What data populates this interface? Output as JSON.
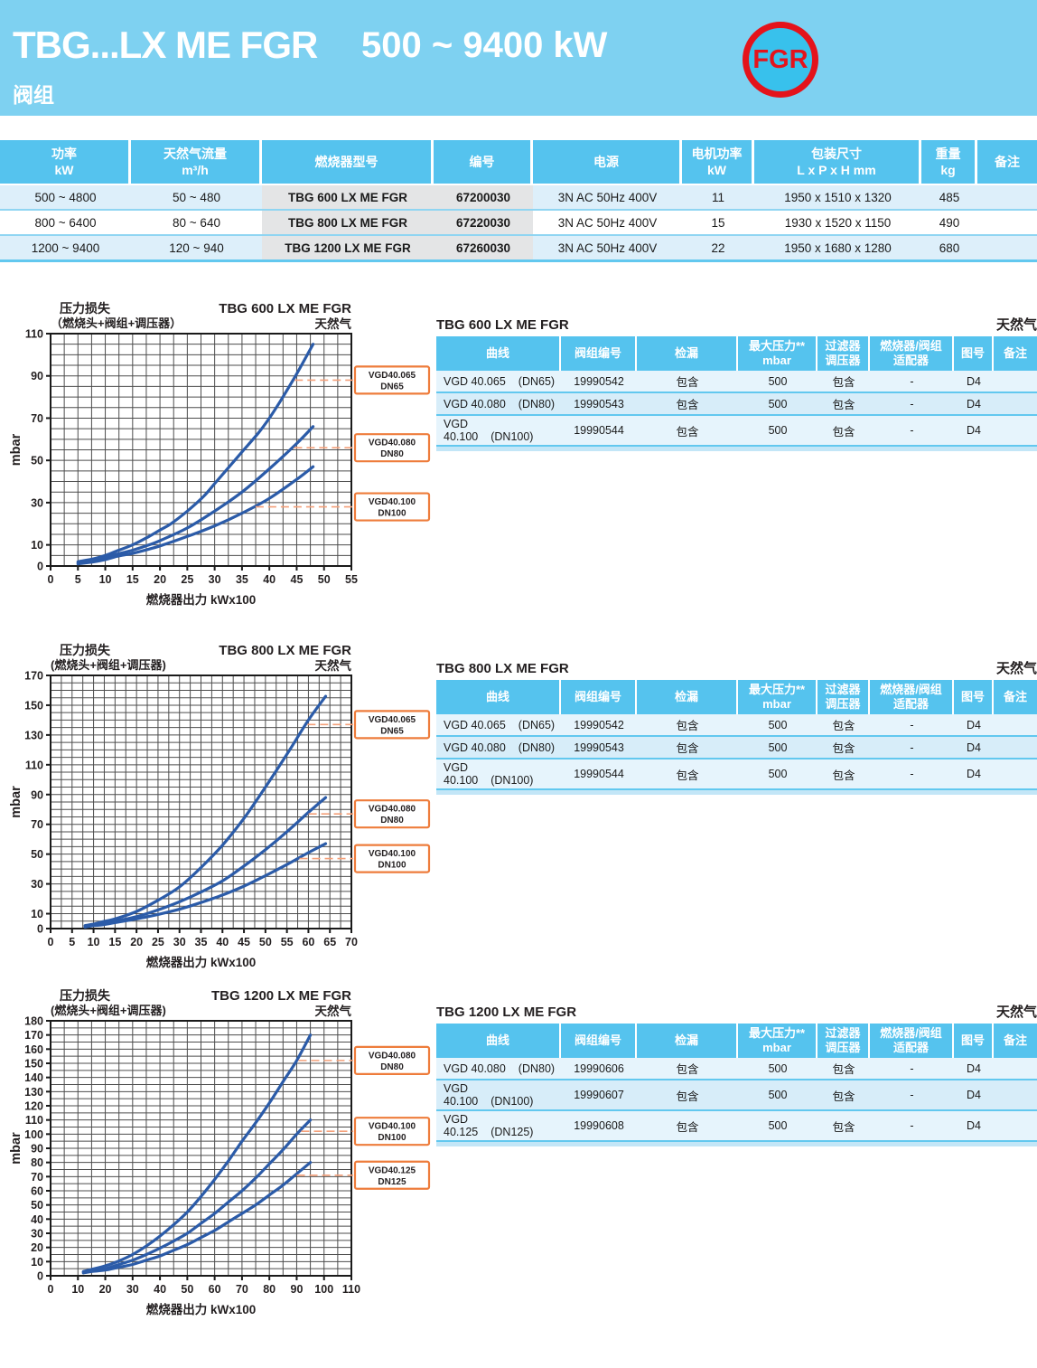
{
  "header": {
    "title": "TBG...LX ME FGR",
    "power_range": "500 ~ 9400 kW",
    "subtitle": "阀组",
    "badge": "FGR"
  },
  "colors": {
    "band_blue": "#7ed1f1",
    "table_header_blue": "#55c3ee",
    "row_light_blue": "#ddeffa",
    "gray_column": "#e4e5e6",
    "curve_blue": "#2b5ba8",
    "grid_gray": "#4d4d4d",
    "orange": "#ee7c3b",
    "dash_orange": "#f4a07a",
    "badge_red": "#e4131b"
  },
  "main_table": {
    "headers": [
      [
        "功率",
        "kW"
      ],
      [
        "天然气流量",
        "m³/h"
      ],
      [
        "燃烧器型号"
      ],
      [
        "编号"
      ],
      [
        "电源"
      ],
      [
        "电机功率",
        "kW"
      ],
      [
        "包装尺寸",
        "L x P x H  mm"
      ],
      [
        "重量",
        "kg"
      ],
      [
        "备注"
      ]
    ],
    "rows": [
      [
        "500 ~ 4800",
        "50 ~ 480",
        "TBG 600 LX ME FGR",
        "67200030",
        "3N AC 50Hz 400V",
        "11",
        "1950 x 1510 x 1320",
        "485",
        ""
      ],
      [
        "800 ~ 6400",
        "80 ~ 640",
        "TBG 800 LX ME FGR",
        "67220030",
        "3N AC 50Hz 400V",
        "15",
        "1930 x 1520 x 1150",
        "490",
        ""
      ],
      [
        "1200 ~ 9400",
        "120 ~ 940",
        "TBG 1200 LX ME FGR",
        "67260030",
        "3N AC 50Hz 400V",
        "22",
        "1950 x 1680 x 1280",
        "680",
        ""
      ]
    ]
  },
  "side_table_headers": [
    [
      "曲线"
    ],
    [
      "阀组编号"
    ],
    [
      "检漏"
    ],
    [
      "最大压力**",
      "mbar"
    ],
    [
      "过滤器",
      "调压器"
    ],
    [
      "燃烧器/阀组",
      "适配器"
    ],
    [
      "图号"
    ],
    [
      "备注"
    ]
  ],
  "sections": [
    {
      "id": "tbg600",
      "title": "TBG 600 LX ME FGR",
      "gas": "天然气",
      "table_rows": [
        {
          "curve": "VGD 40.065",
          "dn": "(DN65)",
          "code": "19990542",
          "leak": "包含",
          "max_pressure": "500",
          "filter": "包含",
          "adapter": "-",
          "diagram": "D4",
          "notes": ""
        },
        {
          "curve": "VGD 40.080",
          "dn": "(DN80)",
          "code": "19990543",
          "leak": "包含",
          "max_pressure": "500",
          "filter": "包含",
          "adapter": "-",
          "diagram": "D4",
          "notes": ""
        },
        {
          "curve": "VGD 40.100",
          "dn": "(DN100)",
          "code": "19990544",
          "leak": "包含",
          "max_pressure": "500",
          "filter": "包含",
          "adapter": "-",
          "diagram": "D4",
          "notes": ""
        }
      ]
    },
    {
      "id": "tbg800",
      "title": "TBG 800 LX ME FGR",
      "gas": "天然气",
      "table_rows": [
        {
          "curve": "VGD 40.065",
          "dn": "(DN65)",
          "code": "19990542",
          "leak": "包含",
          "max_pressure": "500",
          "filter": "包含",
          "adapter": "-",
          "diagram": "D4",
          "notes": ""
        },
        {
          "curve": "VGD 40.080",
          "dn": "(DN80)",
          "code": "19990543",
          "leak": "包含",
          "max_pressure": "500",
          "filter": "包含",
          "adapter": "-",
          "diagram": "D4",
          "notes": ""
        },
        {
          "curve": "VGD 40.100",
          "dn": "(DN100)",
          "code": "19990544",
          "leak": "包含",
          "max_pressure": "500",
          "filter": "包含",
          "adapter": "-",
          "diagram": "D4",
          "notes": ""
        }
      ]
    },
    {
      "id": "tbg1200",
      "title": "TBG 1200 LX ME FGR",
      "gas": "天然气",
      "table_rows": [
        {
          "curve": "VGD 40.080",
          "dn": "(DN80)",
          "code": "19990606",
          "leak": "包含",
          "max_pressure": "500",
          "filter": "包含",
          "adapter": "-",
          "diagram": "D4",
          "notes": ""
        },
        {
          "curve": "VGD 40.100",
          "dn": "(DN100)",
          "code": "19990607",
          "leak": "包含",
          "max_pressure": "500",
          "filter": "包含",
          "adapter": "-",
          "diagram": "D4",
          "notes": ""
        },
        {
          "curve": "VGD 40.125",
          "dn": "(DN125)",
          "code": "19990608",
          "leak": "包含",
          "max_pressure": "500",
          "filter": "包含",
          "adapter": "-",
          "diagram": "D4",
          "notes": ""
        }
      ]
    }
  ],
  "chart_data": [
    {
      "id": "tbg600",
      "type": "line",
      "title_left": [
        "压力损失",
        "（燃烧头+阀组+调压器）"
      ],
      "title_right": [
        "TBG 600 LX ME FGR",
        "天然气"
      ],
      "xlabel": "燃烧器出力 kWx100",
      "ylabel": "mbar",
      "xlim": [
        0,
        55
      ],
      "ylim": [
        0,
        110
      ],
      "xticks": [
        0,
        5,
        10,
        15,
        20,
        25,
        30,
        35,
        40,
        45,
        50,
        55
      ],
      "yticks": [
        0,
        10,
        30,
        50,
        70,
        90,
        110
      ],
      "xgrid": 2.5,
      "ygrid": 5,
      "series": [
        {
          "name": "VGD40.065",
          "dn": "DN65",
          "label_y": 88,
          "points": [
            [
              5,
              2
            ],
            [
              8,
              3.5
            ],
            [
              10,
              5
            ],
            [
              12,
              7
            ],
            [
              15,
              10
            ],
            [
              18,
              14
            ],
            [
              20,
              17
            ],
            [
              22,
              20
            ],
            [
              25,
              26
            ],
            [
              28,
              33
            ],
            [
              30,
              39
            ],
            [
              32,
              45
            ],
            [
              35,
              54
            ],
            [
              38,
              63
            ],
            [
              40,
              70
            ],
            [
              42,
              78
            ],
            [
              45,
              91
            ],
            [
              48,
              105
            ]
          ]
        },
        {
          "name": "VGD40.080",
          "dn": "DN80",
          "label_y": 56,
          "points": [
            [
              5,
              1.5
            ],
            [
              8,
              3
            ],
            [
              10,
              4
            ],
            [
              12,
              5.5
            ],
            [
              15,
              7.5
            ],
            [
              18,
              10
            ],
            [
              20,
              12
            ],
            [
              25,
              18
            ],
            [
              30,
              26
            ],
            [
              35,
              35
            ],
            [
              40,
              46
            ],
            [
              45,
              58
            ],
            [
              48,
              66
            ]
          ]
        },
        {
          "name": "VGD40.100",
          "dn": "DN100",
          "label_y": 28,
          "points": [
            [
              5,
              1
            ],
            [
              8,
              2
            ],
            [
              10,
              3
            ],
            [
              12,
              4.5
            ],
            [
              15,
              6
            ],
            [
              18,
              8
            ],
            [
              20,
              9.5
            ],
            [
              25,
              14
            ],
            [
              30,
              19
            ],
            [
              35,
              25
            ],
            [
              40,
              32
            ],
            [
              45,
              41
            ],
            [
              48,
              47
            ]
          ]
        }
      ]
    },
    {
      "id": "tbg800",
      "type": "line",
      "title_left": [
        "压力损失",
        "(燃烧头+阀组+调压器)"
      ],
      "title_right": [
        "TBG 800 LX ME FGR",
        "天然气"
      ],
      "xlabel": "燃烧器出力 kWx100",
      "ylabel": "mbar",
      "xlim": [
        0,
        70
      ],
      "ylim": [
        0,
        170
      ],
      "xticks": [
        0,
        5,
        10,
        15,
        20,
        25,
        30,
        35,
        40,
        45,
        50,
        55,
        60,
        65,
        70
      ],
      "yticks": [
        0,
        10,
        30,
        50,
        70,
        90,
        110,
        130,
        150,
        170
      ],
      "xgrid": 2.5,
      "ygrid": 5,
      "series": [
        {
          "name": "VGD40.065",
          "dn": "DN65",
          "label_y": 137,
          "points": [
            [
              8,
              2
            ],
            [
              10,
              3
            ],
            [
              12,
              4.5
            ],
            [
              15,
              6.5
            ],
            [
              20,
              11.5
            ],
            [
              25,
              19
            ],
            [
              30,
              28
            ],
            [
              35,
              41
            ],
            [
              40,
              56
            ],
            [
              45,
              74
            ],
            [
              50,
              95
            ],
            [
              55,
              117
            ],
            [
              60,
              140
            ],
            [
              64,
              156
            ]
          ]
        },
        {
          "name": "VGD40.080",
          "dn": "DN80",
          "label_y": 77,
          "points": [
            [
              8,
              1.5
            ],
            [
              10,
              2.5
            ],
            [
              12,
              3.5
            ],
            [
              15,
              5
            ],
            [
              20,
              8
            ],
            [
              25,
              12.5
            ],
            [
              30,
              18
            ],
            [
              35,
              24.5
            ],
            [
              40,
              32
            ],
            [
              45,
              42
            ],
            [
              50,
              53
            ],
            [
              55,
              65
            ],
            [
              60,
              78
            ],
            [
              64,
              88
            ]
          ]
        },
        {
          "name": "VGD40.100",
          "dn": "DN100",
          "label_y": 47,
          "points": [
            [
              8,
              1
            ],
            [
              10,
              2
            ],
            [
              12,
              2.5
            ],
            [
              15,
              4
            ],
            [
              20,
              6.5
            ],
            [
              25,
              9.5
            ],
            [
              30,
              13
            ],
            [
              35,
              17.5
            ],
            [
              40,
              22.5
            ],
            [
              45,
              28.5
            ],
            [
              50,
              35.5
            ],
            [
              55,
              43
            ],
            [
              60,
              51
            ],
            [
              64,
              57
            ]
          ]
        }
      ]
    },
    {
      "id": "tbg1200",
      "type": "line",
      "title_left": [
        "压力损失",
        "(燃烧头+阀组+调压器)"
      ],
      "title_right": [
        "TBG 1200 LX ME FGR",
        "天然气"
      ],
      "xlabel": "燃烧器出力 kWx100",
      "ylabel": "mbar",
      "xlim": [
        0,
        110
      ],
      "ylim": [
        0,
        180
      ],
      "xticks": [
        0,
        10,
        20,
        30,
        40,
        50,
        60,
        70,
        80,
        90,
        100,
        110
      ],
      "yticks": [
        0,
        10,
        20,
        30,
        40,
        50,
        60,
        70,
        80,
        90,
        100,
        110,
        120,
        130,
        140,
        150,
        160,
        170,
        180
      ],
      "xgrid": 5,
      "ygrid": 5,
      "series": [
        {
          "name": "VGD40.080",
          "dn": "DN80",
          "label_y": 152,
          "points": [
            [
              12,
              3
            ],
            [
              15,
              4.5
            ],
            [
              20,
              7
            ],
            [
              25,
              10.5
            ],
            [
              30,
              15
            ],
            [
              35,
              21
            ],
            [
              40,
              28
            ],
            [
              45,
              36
            ],
            [
              50,
              45
            ],
            [
              55,
              56
            ],
            [
              60,
              68
            ],
            [
              65,
              81
            ],
            [
              70,
              95
            ],
            [
              75,
              108
            ],
            [
              80,
              122
            ],
            [
              85,
              137
            ],
            [
              90,
              152
            ],
            [
              95,
              170
            ]
          ]
        },
        {
          "name": "VGD40.100",
          "dn": "DN100",
          "label_y": 102,
          "points": [
            [
              12,
              2.5
            ],
            [
              15,
              3.5
            ],
            [
              20,
              5
            ],
            [
              25,
              8
            ],
            [
              30,
              11
            ],
            [
              35,
              15
            ],
            [
              40,
              19.5
            ],
            [
              45,
              24.5
            ],
            [
              50,
              30
            ],
            [
              55,
              37
            ],
            [
              60,
              44
            ],
            [
              65,
              52
            ],
            [
              70,
              60
            ],
            [
              75,
              69
            ],
            [
              80,
              79
            ],
            [
              85,
              89
            ],
            [
              90,
              100
            ],
            [
              95,
              110
            ]
          ]
        },
        {
          "name": "VGD40.125",
          "dn": "DN125",
          "label_y": 71,
          "points": [
            [
              12,
              2
            ],
            [
              15,
              3
            ],
            [
              20,
              4
            ],
            [
              25,
              6
            ],
            [
              30,
              8
            ],
            [
              35,
              11
            ],
            [
              40,
              14
            ],
            [
              45,
              18
            ],
            [
              50,
              22
            ],
            [
              55,
              27
            ],
            [
              60,
              32
            ],
            [
              65,
              38
            ],
            [
              70,
              44
            ],
            [
              75,
              50
            ],
            [
              80,
              57
            ],
            [
              85,
              64
            ],
            [
              90,
              72
            ],
            [
              95,
              80
            ]
          ]
        }
      ]
    }
  ]
}
